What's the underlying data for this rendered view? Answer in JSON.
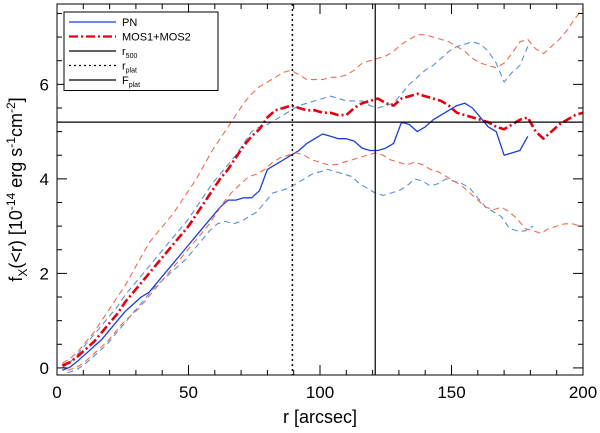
{
  "chart_data": {
    "type": "line",
    "xlabel": "r [arcsec]",
    "ylabel": {
      "base": "f",
      "base_sub": "X",
      "mid": "(<r) [10",
      "exp1": "-14",
      "mid2": " erg s",
      "exp2": "-1",
      "mid3": "cm",
      "exp3": "-2",
      "end": "]"
    },
    "xlim": [
      0,
      200
    ],
    "ylim": [
      -0.15,
      7.7
    ],
    "xticks": [
      0,
      50,
      100,
      150,
      200
    ],
    "yticks": [
      0,
      2,
      4,
      6
    ],
    "colors": {
      "pn": "#1a3fd6",
      "pn_err": "#5a8fd6",
      "mos": "#e3000f",
      "mos_err": "#f26a50",
      "ref": "#000000"
    },
    "series": [
      {
        "name": "PN",
        "style": "solid",
        "color_key": "pn",
        "x": [
          2,
          5,
          8,
          11,
          14,
          17,
          20,
          23,
          26,
          29,
          32,
          35,
          38,
          41,
          44,
          47,
          50,
          53,
          56,
          59,
          62,
          65,
          68,
          71,
          74,
          77,
          80,
          83,
          86,
          89,
          92,
          95,
          98,
          101,
          104,
          107,
          110,
          113,
          116,
          119,
          122,
          125,
          128,
          131,
          134,
          137,
          140,
          143,
          146,
          149,
          152,
          155,
          158,
          161,
          164,
          167,
          170,
          173,
          176,
          179
        ],
        "y": [
          -0.05,
          0.02,
          0.15,
          0.3,
          0.45,
          0.6,
          0.8,
          1.0,
          1.2,
          1.35,
          1.5,
          1.6,
          1.8,
          2.0,
          2.2,
          2.4,
          2.6,
          2.8,
          3.0,
          3.2,
          3.4,
          3.55,
          3.55,
          3.6,
          3.6,
          3.75,
          4.2,
          4.3,
          4.4,
          4.5,
          4.6,
          4.75,
          4.85,
          4.95,
          4.9,
          4.85,
          4.85,
          4.8,
          4.65,
          4.6,
          4.6,
          4.65,
          4.75,
          5.2,
          5.15,
          5.0,
          5.1,
          5.25,
          5.35,
          5.45,
          5.55,
          5.6,
          5.5,
          5.3,
          5.1,
          5.0,
          4.5,
          4.55,
          4.6,
          4.9
        ]
      },
      {
        "name": "PN upper",
        "style": "dashed",
        "color_key": "pn_err",
        "x": [
          2,
          5,
          8,
          11,
          14,
          17,
          20,
          23,
          26,
          29,
          32,
          35,
          38,
          41,
          44,
          47,
          50,
          53,
          56,
          59,
          62,
          65,
          68,
          71,
          74,
          77,
          80,
          83,
          86,
          89,
          92,
          95,
          98,
          101,
          104,
          107,
          110,
          113,
          116,
          119,
          122,
          125,
          128,
          131,
          134,
          137,
          140,
          143,
          146,
          149,
          152,
          155,
          158,
          161,
          164,
          167,
          170,
          173,
          176,
          179
        ],
        "y": [
          0.0,
          0.12,
          0.3,
          0.5,
          0.7,
          0.9,
          1.1,
          1.3,
          1.55,
          1.75,
          1.95,
          2.15,
          2.35,
          2.55,
          2.75,
          2.95,
          3.15,
          3.4,
          3.65,
          3.9,
          4.1,
          4.3,
          4.5,
          4.75,
          5.0,
          5.1,
          5.15,
          5.25,
          5.35,
          5.45,
          5.55,
          5.6,
          5.65,
          5.7,
          5.75,
          5.7,
          5.65,
          5.65,
          5.65,
          5.55,
          5.5,
          5.55,
          5.6,
          5.8,
          6.0,
          6.15,
          6.3,
          6.4,
          6.55,
          6.7,
          6.8,
          6.85,
          6.9,
          6.85,
          6.7,
          6.45,
          6.05,
          6.25,
          6.4,
          6.8
        ]
      },
      {
        "name": "PN lower",
        "style": "dashed",
        "color_key": "pn_err",
        "x": [
          4,
          7,
          10,
          13,
          16,
          19,
          22,
          25,
          28,
          31,
          34,
          37,
          40,
          43,
          46,
          49,
          52,
          55,
          58,
          61,
          64,
          67,
          70,
          73,
          76,
          79,
          82,
          85,
          88,
          91,
          94,
          97,
          100,
          103,
          106,
          109,
          112,
          115,
          118,
          121,
          124,
          127,
          130,
          133,
          136,
          139,
          142,
          145,
          148,
          151,
          154,
          157,
          160,
          163,
          166,
          169,
          172,
          175,
          178,
          181
        ],
        "y": [
          -0.1,
          -0.05,
          0.05,
          0.2,
          0.35,
          0.5,
          0.7,
          0.9,
          1.1,
          1.3,
          1.5,
          1.7,
          1.85,
          2.0,
          2.15,
          2.3,
          2.5,
          2.7,
          2.9,
          3.05,
          3.1,
          3.05,
          3.1,
          3.2,
          3.3,
          3.5,
          3.7,
          3.75,
          3.8,
          3.9,
          4.0,
          4.1,
          4.15,
          4.2,
          4.15,
          4.1,
          4.05,
          3.9,
          3.8,
          3.7,
          3.65,
          3.7,
          3.75,
          3.85,
          4.0,
          3.95,
          3.85,
          3.9,
          4.0,
          3.95,
          3.9,
          3.8,
          3.6,
          3.4,
          3.3,
          3.2,
          2.95,
          2.9,
          2.9,
          3.0
        ]
      },
      {
        "name": "MOS1+MOS2",
        "style": "dashdot",
        "color_key": "mos",
        "x": [
          2,
          5,
          8,
          11,
          14,
          17,
          20,
          23,
          26,
          29,
          32,
          35,
          38,
          41,
          44,
          47,
          50,
          53,
          56,
          59,
          62,
          65,
          68,
          71,
          74,
          77,
          80,
          83,
          86,
          89,
          92,
          95,
          98,
          101,
          104,
          107,
          110,
          113,
          116,
          119,
          122,
          125,
          128,
          131,
          134,
          137,
          140,
          143,
          146,
          149,
          152,
          155,
          158,
          161,
          164,
          167,
          170,
          173,
          176,
          179,
          182,
          185,
          188,
          191,
          194,
          197,
          200
        ],
        "y": [
          0.05,
          0.12,
          0.25,
          0.4,
          0.55,
          0.75,
          0.95,
          1.15,
          1.4,
          1.6,
          1.8,
          2.0,
          2.2,
          2.4,
          2.6,
          2.8,
          3.0,
          3.25,
          3.5,
          3.75,
          4.0,
          4.2,
          4.45,
          4.7,
          4.9,
          5.05,
          5.3,
          5.45,
          5.5,
          5.55,
          5.5,
          5.45,
          5.45,
          5.4,
          5.4,
          5.35,
          5.35,
          5.5,
          5.6,
          5.65,
          5.7,
          5.6,
          5.55,
          5.7,
          5.75,
          5.8,
          5.75,
          5.7,
          5.65,
          5.55,
          5.4,
          5.35,
          5.3,
          5.25,
          5.2,
          5.1,
          5.05,
          5.15,
          5.25,
          5.3,
          5.0,
          4.85,
          5.0,
          5.15,
          5.25,
          5.35,
          5.4
        ]
      },
      {
        "name": "MOS upper",
        "style": "dashed",
        "color_key": "mos_err",
        "x": [
          2,
          5,
          8,
          11,
          14,
          17,
          20,
          23,
          26,
          29,
          32,
          35,
          38,
          41,
          44,
          47,
          50,
          53,
          56,
          59,
          62,
          65,
          68,
          71,
          74,
          77,
          80,
          83,
          86,
          89,
          92,
          95,
          98,
          101,
          104,
          107,
          110,
          113,
          116,
          119,
          122,
          125,
          128,
          131,
          134,
          137,
          140,
          143,
          146,
          149,
          152,
          155,
          158,
          161,
          164,
          167,
          170,
          173,
          176,
          179,
          182,
          185,
          188,
          191,
          194,
          197,
          200
        ],
        "y": [
          0.1,
          0.2,
          0.35,
          0.55,
          0.75,
          1.0,
          1.25,
          1.5,
          1.75,
          2.05,
          2.35,
          2.65,
          2.85,
          3.05,
          3.25,
          3.5,
          3.75,
          4.0,
          4.3,
          4.6,
          4.85,
          5.1,
          5.35,
          5.6,
          5.8,
          5.95,
          6.05,
          6.15,
          6.25,
          6.3,
          6.2,
          6.1,
          6.1,
          6.1,
          6.15,
          6.15,
          6.2,
          6.3,
          6.45,
          6.5,
          6.55,
          6.6,
          6.7,
          6.85,
          6.95,
          7.05,
          7.05,
          7.0,
          6.95,
          6.9,
          6.8,
          6.7,
          6.55,
          6.45,
          6.4,
          6.35,
          6.45,
          6.65,
          6.9,
          6.95,
          6.75,
          6.65,
          6.8,
          6.95,
          7.15,
          7.4,
          7.6
        ]
      },
      {
        "name": "MOS lower",
        "style": "dashed",
        "color_key": "mos_err",
        "x": [
          4,
          7,
          10,
          13,
          16,
          19,
          22,
          25,
          28,
          31,
          34,
          37,
          40,
          43,
          46,
          49,
          52,
          55,
          58,
          61,
          64,
          67,
          70,
          73,
          76,
          79,
          82,
          85,
          88,
          91,
          94,
          97,
          100,
          103,
          106,
          109,
          112,
          115,
          118,
          121,
          124,
          127,
          130,
          133,
          136,
          139,
          142,
          145,
          148,
          151,
          154,
          157,
          160,
          163,
          166,
          169,
          172,
          175,
          178,
          181,
          184,
          187,
          190,
          193,
          196,
          199
        ],
        "y": [
          -0.05,
          0.0,
          0.1,
          0.25,
          0.4,
          0.55,
          0.75,
          0.95,
          1.1,
          1.25,
          1.45,
          1.65,
          1.85,
          2.05,
          2.25,
          2.45,
          2.65,
          2.85,
          3.05,
          3.3,
          3.55,
          3.75,
          3.9,
          4.05,
          4.1,
          4.2,
          4.35,
          4.45,
          4.5,
          4.55,
          4.5,
          4.4,
          4.35,
          4.3,
          4.3,
          4.35,
          4.4,
          4.45,
          4.5,
          4.55,
          4.5,
          4.4,
          4.35,
          4.3,
          4.35,
          4.3,
          4.2,
          4.15,
          4.05,
          3.95,
          3.85,
          3.7,
          3.55,
          3.4,
          3.35,
          3.4,
          3.3,
          3.15,
          2.95,
          2.9,
          2.85,
          2.95,
          3.0,
          3.05,
          3.05,
          3.0
        ]
      }
    ],
    "reference_lines": [
      {
        "name": "r500",
        "orientation": "vertical",
        "value": 121,
        "style": "solid"
      },
      {
        "name": "rplat",
        "orientation": "vertical",
        "value": 89.5,
        "style": "dotted"
      },
      {
        "name": "Fplat",
        "orientation": "horizontal",
        "value": 5.2,
        "style": "solid"
      }
    ],
    "legend": {
      "placement": "top-left",
      "entries": [
        {
          "label": "PN",
          "sub": "",
          "style": "solid",
          "color_key": "pn"
        },
        {
          "label": "MOS1+MOS2",
          "sub": "",
          "style": "dashdot",
          "color_key": "mos"
        },
        {
          "label": "r",
          "sub": "500",
          "style": "solid",
          "color_key": "ref"
        },
        {
          "label": "r",
          "sub": "plat",
          "style": "dotted",
          "color_key": "ref"
        },
        {
          "label": "F",
          "sub": "plat",
          "style": "solid",
          "color_key": "ref"
        }
      ]
    }
  }
}
